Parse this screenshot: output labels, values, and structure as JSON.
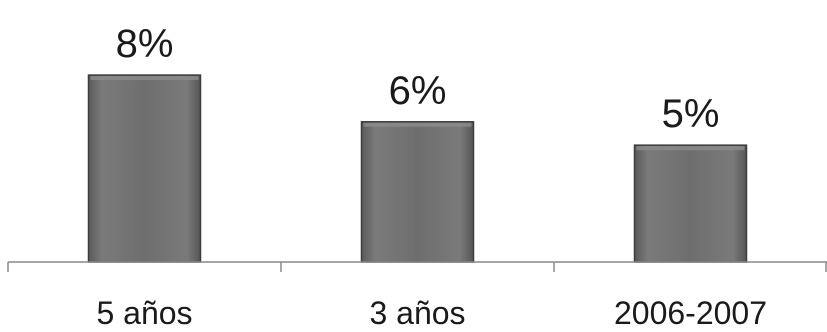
{
  "chart_data": {
    "type": "bar",
    "categories": [
      "5 años",
      "3 años",
      "2006-2007"
    ],
    "values": [
      8,
      6,
      5
    ],
    "value_labels": [
      "8%",
      "6%",
      "5%"
    ],
    "unit": "%",
    "ylim": [
      0,
      9.5
    ],
    "grid": false,
    "legend": "none",
    "colors": {
      "bar": "#6f6f6f",
      "bar_edge": "#3c3c3c",
      "axis": "#8a8a8a",
      "text": "#1a1a1a"
    }
  }
}
